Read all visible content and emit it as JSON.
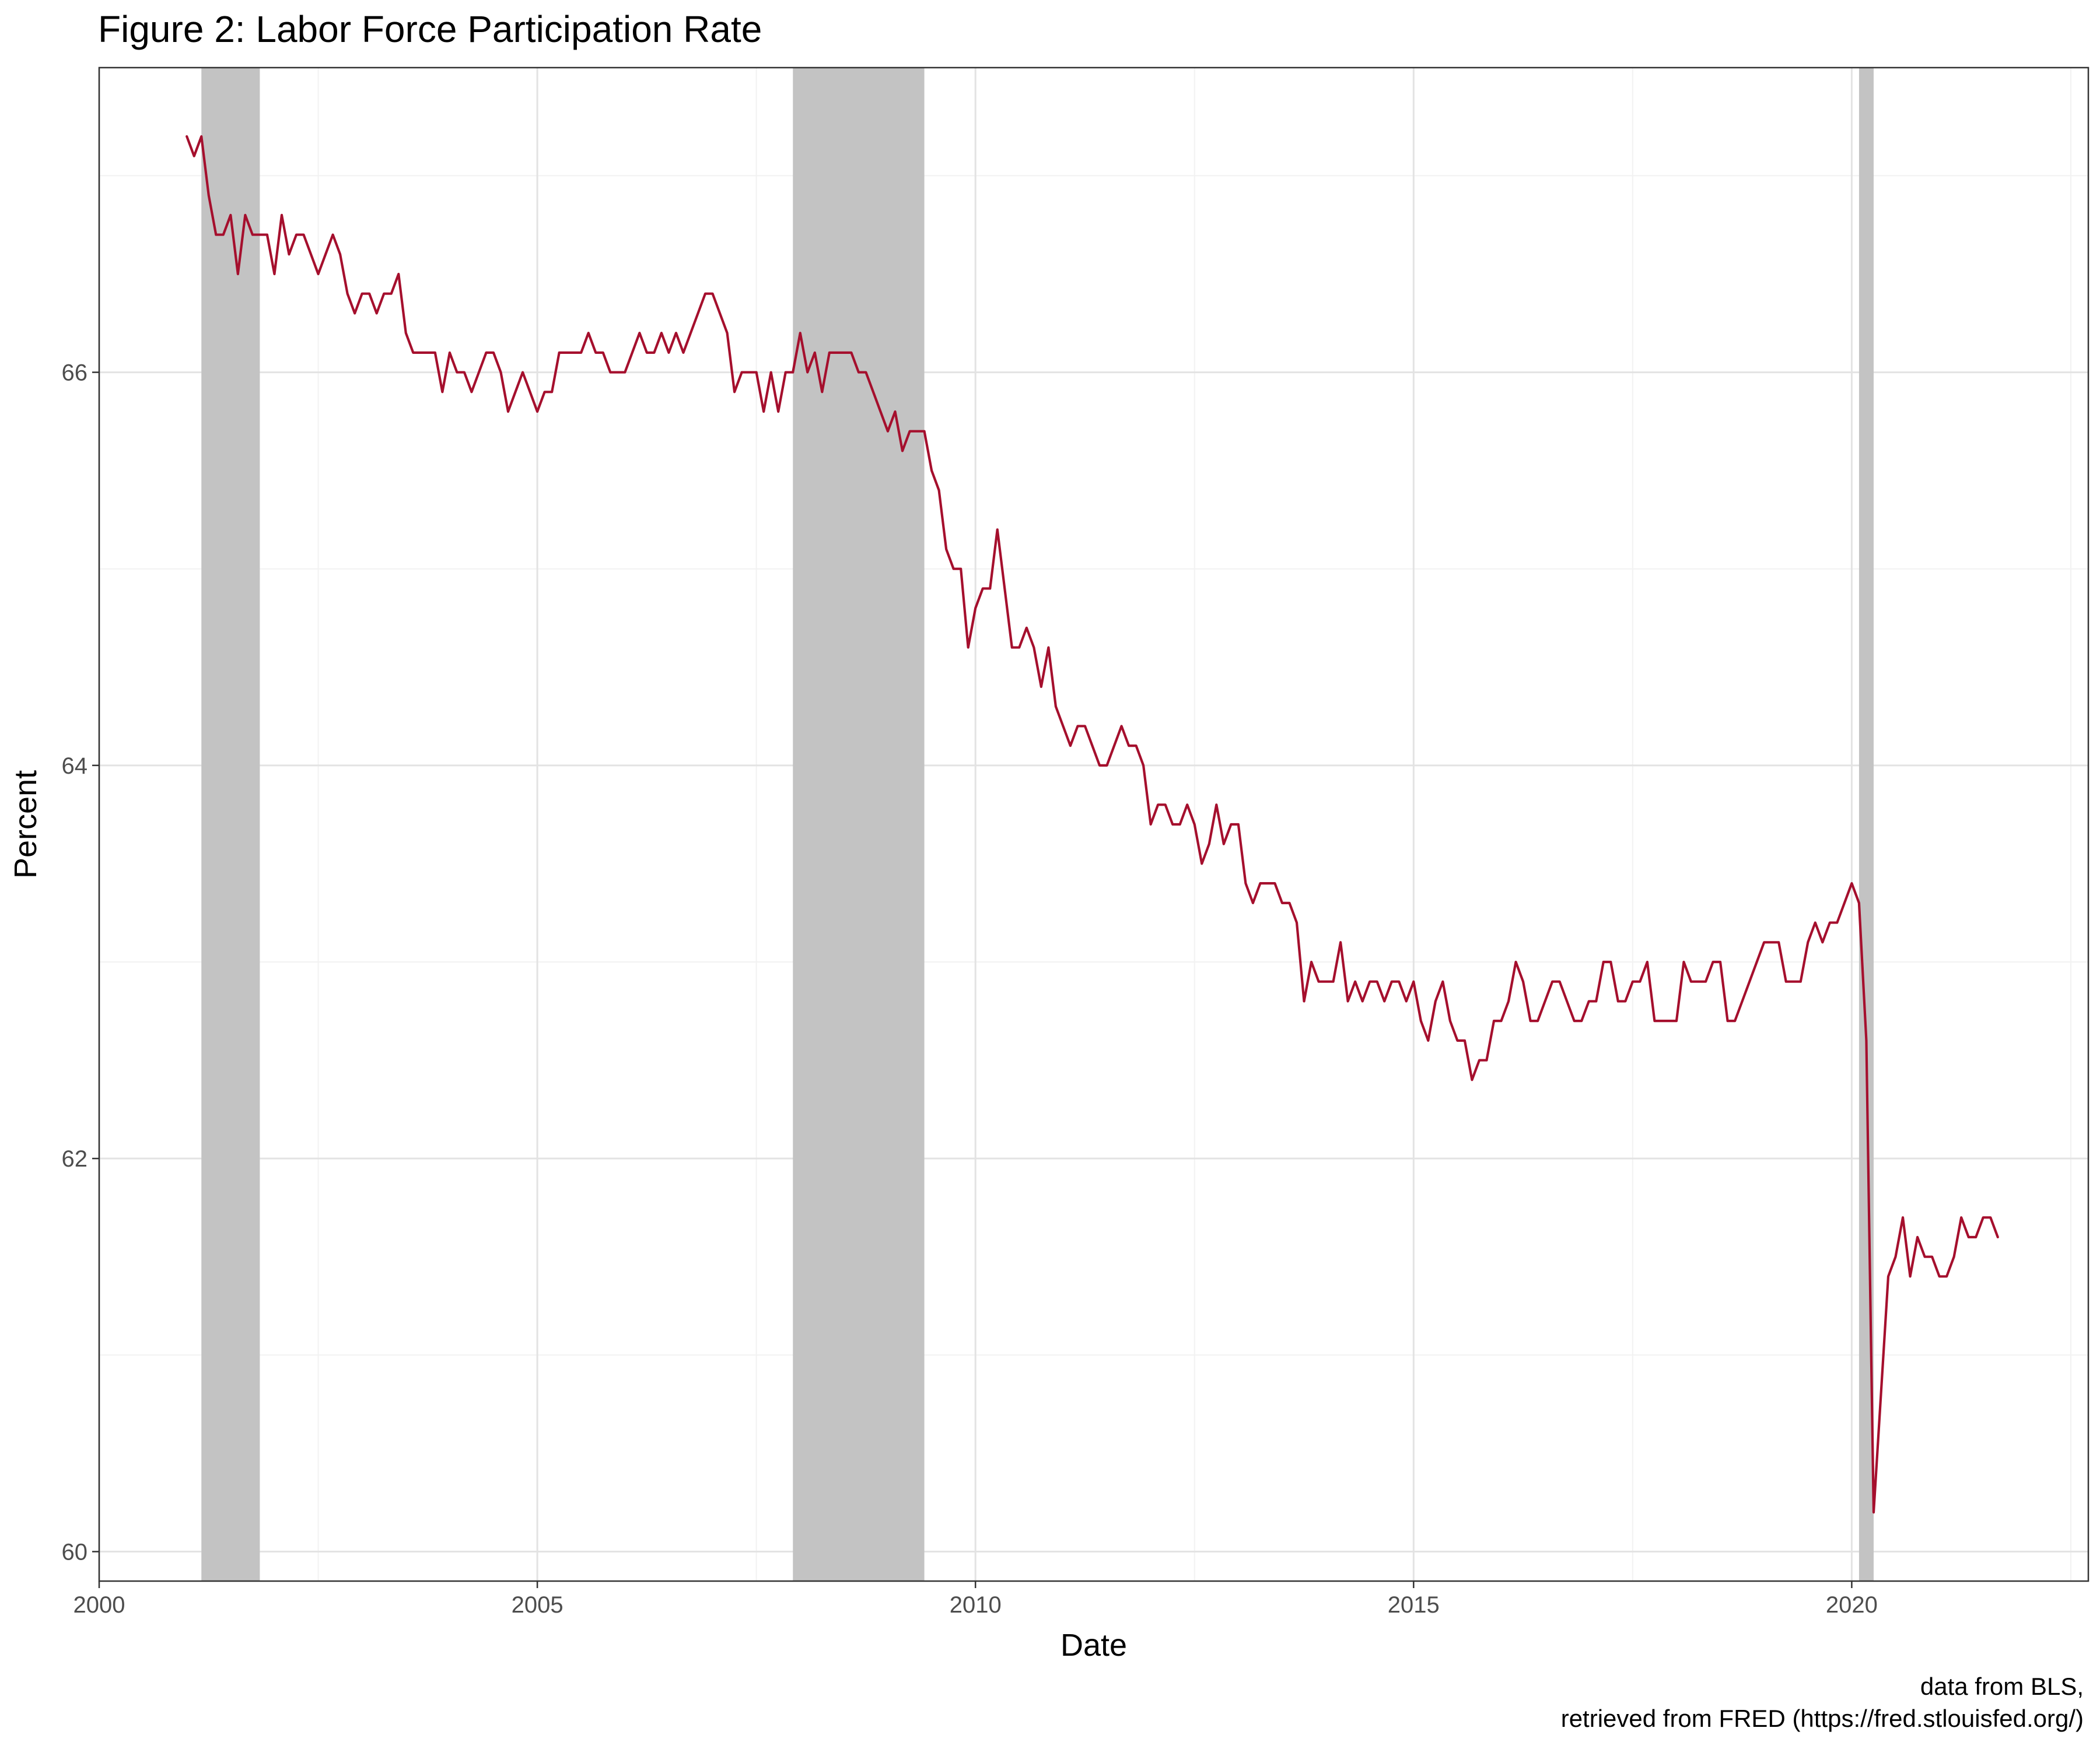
{
  "chart_data": {
    "type": "line",
    "title": "Figure 2: Labor Force Participation Rate",
    "xlabel": "Date",
    "ylabel": "Percent",
    "caption": [
      "data from BLS,",
      "retrieved from FRED (https://fred.stlouisfed.org/)"
    ],
    "xlim": [
      2000,
      2022.7
    ],
    "ylim": [
      59.85,
      67.55
    ],
    "x_ticks": [
      2000,
      2005,
      2010,
      2015,
      2020
    ],
    "x_tick_labels": [
      "2000",
      "2005",
      "2010",
      "2015",
      "2020"
    ],
    "y_ticks": [
      60,
      62,
      64,
      66
    ],
    "y_tick_labels": [
      "60",
      "62",
      "64",
      "66"
    ],
    "grid": true,
    "legend": "none",
    "colors": {
      "line": "#a50f2d",
      "recession": "#c3c3c3",
      "panel_border": "#333333",
      "grid_major": "#e3e3e3",
      "grid_minor": "#f2f2f2"
    },
    "recessions": [
      {
        "start": "2001-03",
        "end": "2001-11"
      },
      {
        "start": "2007-12",
        "end": "2009-06"
      },
      {
        "start": "2020-02",
        "end": "2020-04"
      }
    ],
    "series": [
      {
        "start": "2001-01",
        "frequency": "monthly",
        "values": [
          67.2,
          67.1,
          67.2,
          66.9,
          66.7,
          66.7,
          66.8,
          66.5,
          66.8,
          66.7,
          66.7,
          66.7,
          66.5,
          66.8,
          66.6,
          66.7,
          66.7,
          66.6,
          66.5,
          66.6,
          66.7,
          66.6,
          66.4,
          66.3,
          66.4,
          66.4,
          66.3,
          66.4,
          66.4,
          66.5,
          66.2,
          66.1,
          66.1,
          66.1,
          66.1,
          65.9,
          66.1,
          66.0,
          66.0,
          65.9,
          66.0,
          66.1,
          66.1,
          66.0,
          65.8,
          65.9,
          66.0,
          65.9,
          65.8,
          65.9,
          65.9,
          66.1,
          66.1,
          66.1,
          66.1,
          66.2,
          66.1,
          66.1,
          66.0,
          66.0,
          66.0,
          66.1,
          66.2,
          66.1,
          66.1,
          66.2,
          66.1,
          66.2,
          66.1,
          66.2,
          66.3,
          66.4,
          66.4,
          66.3,
          66.2,
          65.9,
          66.0,
          66.0,
          66.0,
          65.8,
          66.0,
          65.8,
          66.0,
          66.0,
          66.2,
          66.0,
          66.1,
          65.9,
          66.1,
          66.1,
          66.1,
          66.1,
          66.0,
          66.0,
          65.9,
          65.8,
          65.7,
          65.8,
          65.6,
          65.7,
          65.7,
          65.7,
          65.5,
          65.4,
          65.1,
          65.0,
          65.0,
          64.6,
          64.8,
          64.9,
          64.9,
          65.2,
          64.9,
          64.6,
          64.6,
          64.7,
          64.6,
          64.4,
          64.6,
          64.3,
          64.2,
          64.1,
          64.2,
          64.2,
          64.1,
          64.0,
          64.0,
          64.1,
          64.2,
          64.1,
          64.1,
          64.0,
          63.7,
          63.8,
          63.8,
          63.7,
          63.7,
          63.8,
          63.7,
          63.5,
          63.6,
          63.8,
          63.6,
          63.7,
          63.7,
          63.4,
          63.3,
          63.4,
          63.4,
          63.4,
          63.3,
          63.3,
          63.2,
          62.8,
          63.0,
          62.9,
          62.9,
          62.9,
          63.1,
          62.8,
          62.9,
          62.8,
          62.9,
          62.9,
          62.8,
          62.9,
          62.9,
          62.8,
          62.9,
          62.7,
          62.6,
          62.8,
          62.9,
          62.7,
          62.6,
          62.6,
          62.4,
          62.5,
          62.5,
          62.7,
          62.7,
          62.8,
          63.0,
          62.9,
          62.7,
          62.7,
          62.8,
          62.9,
          62.9,
          62.8,
          62.7,
          62.7,
          62.8,
          62.8,
          63.0,
          63.0,
          62.8,
          62.8,
          62.9,
          62.9,
          63.0,
          62.7,
          62.7,
          62.7,
          62.7,
          63.0,
          62.9,
          62.9,
          62.9,
          63.0,
          63.0,
          62.7,
          62.7,
          62.8,
          62.9,
          63.0,
          63.1,
          63.1,
          63.1,
          62.9,
          62.9,
          62.9,
          63.1,
          63.2,
          63.1,
          63.2,
          63.2,
          63.3,
          63.4,
          63.3,
          62.6,
          60.2,
          60.8,
          61.4,
          61.5,
          61.7,
          61.4,
          61.6,
          61.5,
          61.5,
          61.4,
          61.4,
          61.5,
          61.7,
          61.6,
          61.6,
          61.7,
          61.7,
          61.6
        ]
      }
    ]
  }
}
